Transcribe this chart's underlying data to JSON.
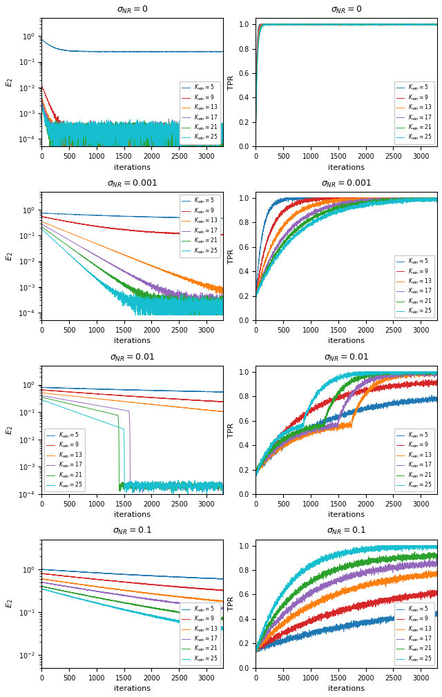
{
  "titles_left": [
    "$\\sigma_{NR} = 0$",
    "$\\sigma_{NR} = 0.001$",
    "$\\sigma_{NR} = 0.01$",
    "$\\sigma_{NR} = 0.1$"
  ],
  "titles_right": [
    "$\\sigma_{NR} = 0$",
    "$\\sigma_{NR} = 0.001$",
    "$\\sigma_{NR} = 0.01$",
    "$\\sigma_{NR} = 0.1$"
  ],
  "ylabel_left": "$E_2$",
  "ylabel_right": "TPR",
  "xlabel": "iterations",
  "k_values": [
    5,
    9,
    13,
    17,
    21,
    25
  ],
  "colors": [
    "#1f77b4",
    "#d62728",
    "#ff7f0e",
    "#9467bd",
    "#2ca02c",
    "#17becf"
  ],
  "n_iter": 3300
}
